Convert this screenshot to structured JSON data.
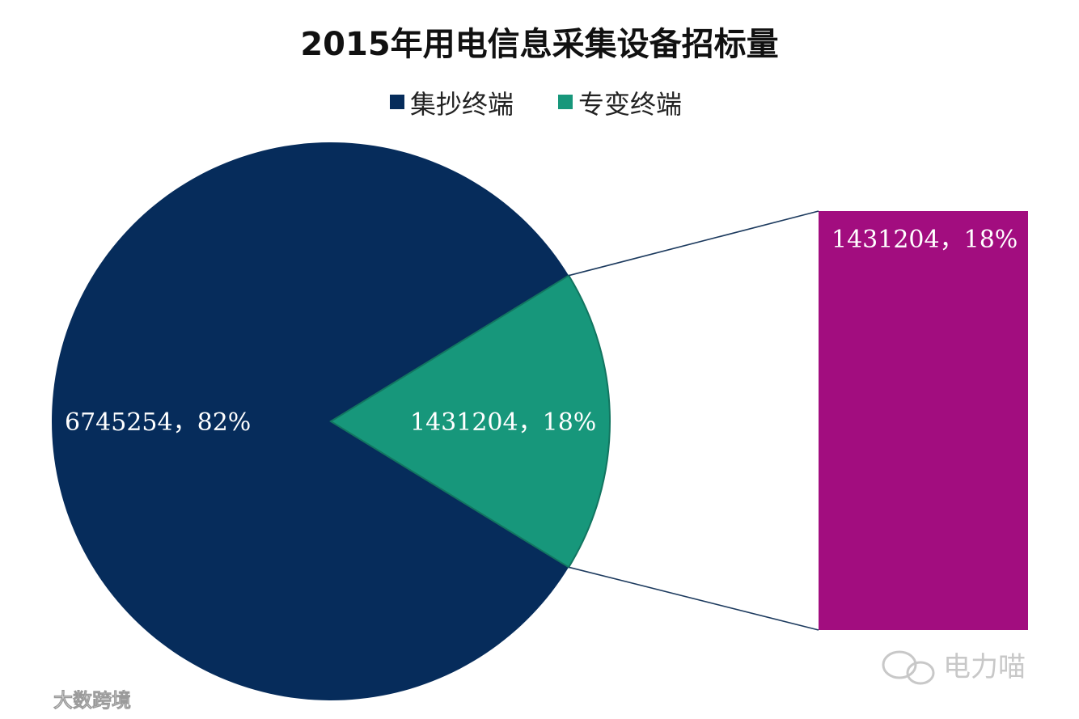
{
  "colors": {
    "series_collector": "#062c5b",
    "series_special": "#17977b",
    "breakout_bar": "#a20d7f",
    "connector_line": "#1c3a5e",
    "title": "#111111"
  },
  "legend_icon": "square-marker",
  "chart_data": {
    "type": "pie",
    "subtype": "bar-of-pie",
    "title": "2015年用电信息采集设备招标量",
    "legend_position": "top",
    "categories": [
      "集抄终端",
      "专变终端"
    ],
    "values": [
      6745254,
      1431204
    ],
    "percent": [
      82,
      18
    ],
    "data_labels": [
      "6745254，82%",
      "1431204，18%"
    ],
    "breakout": {
      "category": "专变终端",
      "value": 1431204,
      "percent": 18,
      "label": "1431204，18%"
    }
  },
  "watermarks": {
    "top_right": "电力喵",
    "bottom_left": "大数跨境"
  }
}
